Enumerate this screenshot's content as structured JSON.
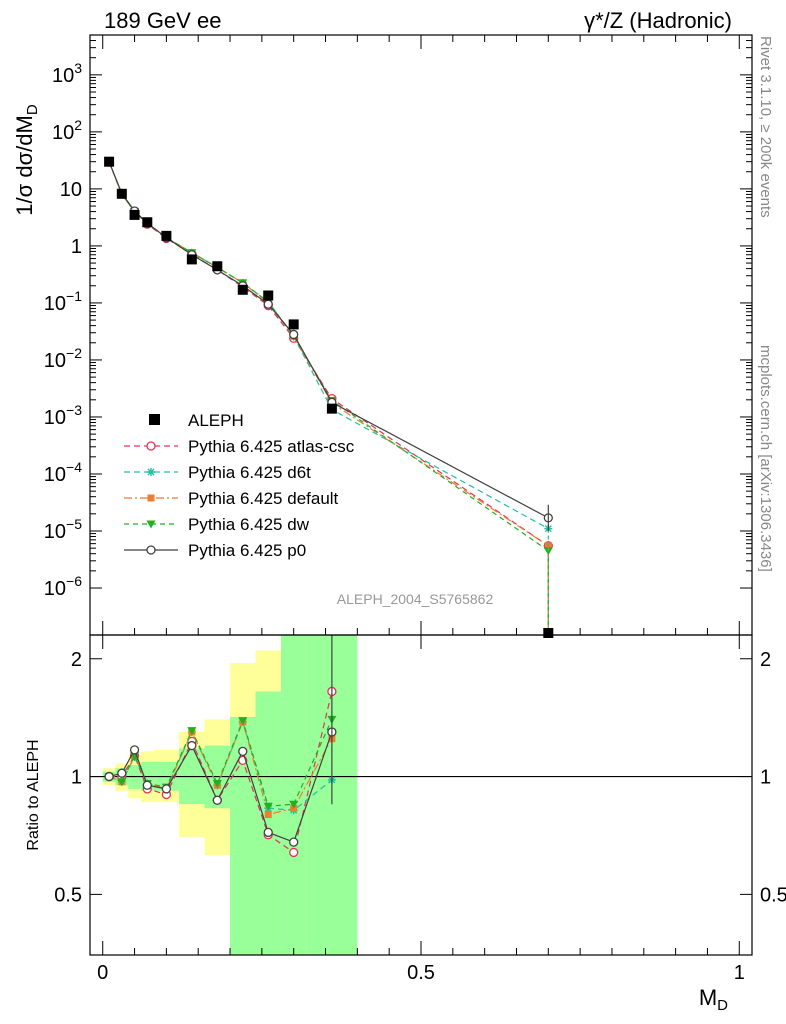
{
  "header": {
    "left": "189 GeV ee",
    "right": "γ*/Z (Hadronic)"
  },
  "side_labels": {
    "rivet": "Rivet 3.1.10, ≥ 200k events",
    "mcplots": "mcplots.cern.ch [arXiv:1306.3436]"
  },
  "analysis_id": "ALEPH_2004_S5765862",
  "chart_data": [
    {
      "type": "line",
      "panel": "main",
      "ylabel": "1/σ dσ/dM",
      "ylabel_sub": "D",
      "yscale": "log",
      "ylim": [
        1.5e-07,
        5000
      ],
      "xlim": [
        -0.02,
        1.02
      ],
      "grid": false,
      "legend_position": "middle-left",
      "y_ticks": [
        {
          "v": 1000.0,
          "base": "10",
          "exp": "3"
        },
        {
          "v": 100.0,
          "base": "10",
          "exp": "2"
        },
        {
          "v": 10,
          "base": "10",
          "exp": ""
        },
        {
          "v": 1,
          "base": "1",
          "exp": ""
        },
        {
          "v": 0.1,
          "base": "10",
          "exp": "−1"
        },
        {
          "v": 0.01,
          "base": "10",
          "exp": "−2"
        },
        {
          "v": 0.001,
          "base": "10",
          "exp": "−3"
        },
        {
          "v": 0.0001,
          "base": "10",
          "exp": "−4"
        },
        {
          "v": 1e-05,
          "base": "10",
          "exp": "−5"
        },
        {
          "v": 1e-06,
          "base": "10",
          "exp": "−6"
        }
      ],
      "data": {
        "name": "ALEPH",
        "x": [
          0.01,
          0.03,
          0.05,
          0.07,
          0.1,
          0.14,
          0.18,
          0.22,
          0.26,
          0.3,
          0.36,
          0.7
        ],
        "y": [
          30,
          8.2,
          3.5,
          2.6,
          1.5,
          0.58,
          0.44,
          0.17,
          0.135,
          0.042,
          0.0014,
          1.5e-07
        ]
      },
      "series": [
        {
          "name": "Pythia 6.425 atlas-csc",
          "color": "#e8305a",
          "marker": "open-circle",
          "dash": "6,4",
          "x": [
            0.01,
            0.03,
            0.05,
            0.07,
            0.1,
            0.14,
            0.18,
            0.22,
            0.26,
            0.3,
            0.36,
            0.7
          ],
          "y": [
            29.5,
            8.3,
            4.0,
            2.4,
            1.35,
            0.72,
            0.38,
            0.19,
            0.09,
            0.024,
            0.0021,
            5.5e-06
          ]
        },
        {
          "name": "Pythia 6.425 d6t",
          "color": "#20c0a0",
          "marker": "asterisk",
          "dash": "6,4",
          "x": [
            0.01,
            0.03,
            0.05,
            0.07,
            0.1,
            0.14,
            0.18,
            0.22,
            0.26,
            0.3,
            0.36,
            0.7
          ],
          "y": [
            30,
            8.0,
            4.0,
            2.5,
            1.4,
            0.76,
            0.42,
            0.225,
            0.105,
            0.026,
            0.00135,
            1.1e-05
          ]
        },
        {
          "name": "Pythia 6.425 default",
          "color": "#f07c30",
          "marker": "square",
          "dash": "8,3,2,3",
          "x": [
            0.01,
            0.03,
            0.05,
            0.07,
            0.1,
            0.14,
            0.18,
            0.22,
            0.26,
            0.3,
            0.36,
            0.7
          ],
          "y": [
            30,
            8.0,
            4.0,
            2.5,
            1.4,
            0.76,
            0.42,
            0.225,
            0.1,
            0.026,
            0.00175,
            5.5e-06
          ]
        },
        {
          "name": "Pythia 6.425 dw",
          "color": "#20b020",
          "marker": "triangle-down",
          "dash": "5,4",
          "x": [
            0.01,
            0.03,
            0.05,
            0.07,
            0.1,
            0.14,
            0.18,
            0.22,
            0.26,
            0.3,
            0.36,
            0.7
          ],
          "y": [
            30,
            8.0,
            4.0,
            2.5,
            1.4,
            0.76,
            0.42,
            0.225,
            0.105,
            0.026,
            0.00195,
            4.5e-06
          ]
        },
        {
          "name": "Pythia 6.425 p0",
          "color": "#404040",
          "marker": "open-circle",
          "dash": "",
          "x": [
            0.01,
            0.03,
            0.05,
            0.07,
            0.1,
            0.14,
            0.18,
            0.22,
            0.26,
            0.3,
            0.36,
            0.7
          ],
          "y": [
            30,
            8.3,
            4.1,
            2.5,
            1.4,
            0.7,
            0.38,
            0.2,
            0.095,
            0.028,
            0.0018,
            1.7e-05
          ]
        }
      ]
    },
    {
      "type": "line",
      "panel": "ratio",
      "xlabel": "M",
      "xlabel_sub": "D",
      "ylabel": "Ratio to ALEPH",
      "yscale": "log",
      "ylim": [
        0.35,
        2.3
      ],
      "xlim": [
        -0.02,
        1.02
      ],
      "x_ticks": [
        {
          "v": 0,
          "label": "0"
        },
        {
          "v": 0.5,
          "label": "0.5"
        },
        {
          "v": 1,
          "label": "1"
        }
      ],
      "y_ticks": [
        {
          "v": 0.5,
          "label": "0.5"
        },
        {
          "v": 1,
          "label": "1"
        },
        {
          "v": 2,
          "label": "2"
        }
      ],
      "bands": {
        "edges": [
          0,
          0.02,
          0.04,
          0.06,
          0.08,
          0.12,
          0.16,
          0.2,
          0.24,
          0.28,
          0.32,
          0.4
        ],
        "yellow_lo": [
          0.95,
          0.92,
          0.88,
          0.86,
          0.86,
          0.7,
          0.63,
          0.35,
          0.35,
          0.35,
          0.35
        ],
        "yellow_hi": [
          1.05,
          1.08,
          1.13,
          1.16,
          1.17,
          1.3,
          1.4,
          1.95,
          2.1,
          2.3,
          2.3
        ],
        "green_lo": [
          0.97,
          0.95,
          0.93,
          0.92,
          0.92,
          0.85,
          0.83,
          0.35,
          0.35,
          0.35,
          0.35
        ],
        "green_hi": [
          1.03,
          1.05,
          1.07,
          1.09,
          1.09,
          1.18,
          1.2,
          1.42,
          1.65,
          2.3,
          2.3
        ]
      },
      "series": [
        {
          "name": "Pythia 6.425 atlas-csc",
          "x": [
            0.01,
            0.03,
            0.05,
            0.07,
            0.1,
            0.14,
            0.18,
            0.22,
            0.26,
            0.3,
            0.36
          ],
          "y": [
            1.0,
            1.0,
            1.13,
            0.93,
            0.9,
            1.23,
            0.87,
            1.1,
            0.71,
            0.64,
            1.65
          ]
        },
        {
          "name": "Pythia 6.425 d6t",
          "x": [
            0.01,
            0.03,
            0.05,
            0.07,
            0.1,
            0.14,
            0.18,
            0.22,
            0.26,
            0.3,
            0.36
          ],
          "y": [
            1.0,
            0.97,
            1.12,
            0.96,
            0.93,
            1.3,
            0.95,
            1.38,
            0.83,
            0.82,
            0.98
          ]
        },
        {
          "name": "Pythia 6.425 default",
          "x": [
            0.01,
            0.03,
            0.05,
            0.07,
            0.1,
            0.14,
            0.18,
            0.22,
            0.26,
            0.3,
            0.36
          ],
          "y": [
            1.0,
            0.97,
            1.13,
            0.96,
            0.93,
            1.3,
            0.95,
            1.38,
            0.8,
            0.83,
            1.25
          ]
        },
        {
          "name": "Pythia 6.425 dw",
          "x": [
            0.01,
            0.03,
            0.05,
            0.07,
            0.1,
            0.14,
            0.18,
            0.22,
            0.26,
            0.3,
            0.36
          ],
          "y": [
            1.0,
            0.97,
            1.13,
            0.96,
            0.94,
            1.31,
            0.96,
            1.39,
            0.84,
            0.85,
            1.4
          ]
        },
        {
          "name": "Pythia 6.425 p0",
          "x": [
            0.01,
            0.03,
            0.05,
            0.07,
            0.1,
            0.14,
            0.18,
            0.22,
            0.26,
            0.3,
            0.36
          ],
          "y": [
            1.0,
            1.02,
            1.17,
            0.95,
            0.93,
            1.2,
            0.87,
            1.16,
            0.72,
            0.68,
            1.3
          ]
        }
      ]
    }
  ]
}
